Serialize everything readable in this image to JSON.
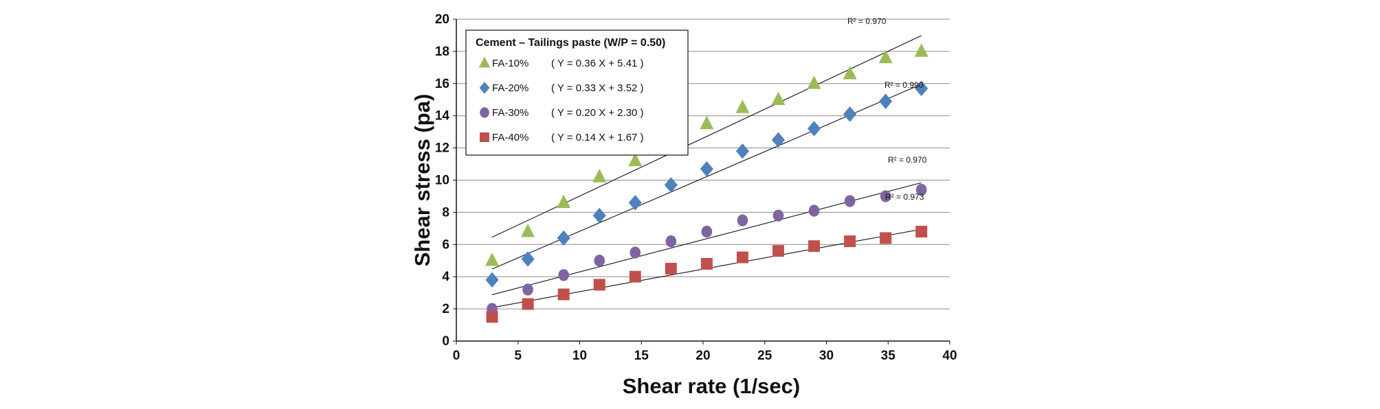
{
  "chart_data": {
    "type": "scatter",
    "xlabel": "Shear rate (1/sec)",
    "ylabel": "Shear stress (pa)",
    "xlim": [
      0,
      40
    ],
    "ylim": [
      0,
      20
    ],
    "xticks": [
      "0",
      "5",
      "10",
      "15",
      "20",
      "25",
      "30",
      "35",
      "40"
    ],
    "yticks": [
      "0",
      "2",
      "4",
      "6",
      "8",
      "10",
      "12",
      "14",
      "16",
      "18",
      "20"
    ],
    "grid": "horizontal",
    "legend": {
      "title": "Cement – Tailings paste (W/P = 0.50)",
      "placement": "top-left"
    },
    "series": [
      {
        "name": "FA-10%",
        "equation": "( Y = 0.36 X  + 5.41 )",
        "r2": "R² = 0.970",
        "marker": "triangle",
        "color": "#9bbb59",
        "x": [
          2.9,
          5.8,
          8.7,
          11.6,
          14.5,
          17.4,
          20.3,
          23.2,
          26.1,
          29.0,
          31.9,
          34.8,
          37.7
        ],
        "y": [
          5.0,
          6.8,
          8.6,
          10.2,
          11.2,
          12.4,
          13.5,
          14.5,
          15.0,
          16.0,
          16.6,
          17.6,
          18.0
        ],
        "fit": {
          "slope": 0.36,
          "intercept": 5.41
        }
      },
      {
        "name": "FA-20%",
        "equation": "( Y = 0.33 X  + 3.52 )",
        "r2": "R² = 0.990",
        "marker": "diamond",
        "color": "#4f81bd",
        "x": [
          2.9,
          5.8,
          8.7,
          11.6,
          14.5,
          17.4,
          20.3,
          23.2,
          26.1,
          29.0,
          31.9,
          34.8,
          37.7
        ],
        "y": [
          3.8,
          5.1,
          6.4,
          7.8,
          8.6,
          9.7,
          10.7,
          11.8,
          12.5,
          13.2,
          14.1,
          14.9,
          15.7
        ],
        "fit": {
          "slope": 0.33,
          "intercept": 3.52
        }
      },
      {
        "name": "FA-30%",
        "equation": "( Y = 0.20 X  + 2.30 )",
        "r2": "R² = 0.970",
        "marker": "circle",
        "color": "#8064a2",
        "x": [
          2.9,
          5.8,
          8.7,
          11.6,
          14.5,
          17.4,
          20.3,
          23.2,
          26.1,
          29.0,
          31.9,
          34.8,
          37.7
        ],
        "y": [
          2.0,
          3.2,
          4.1,
          5.0,
          5.5,
          6.2,
          6.8,
          7.5,
          7.8,
          8.1,
          8.7,
          9.0,
          9.4
        ],
        "fit": {
          "slope": 0.2,
          "intercept": 2.3
        }
      },
      {
        "name": "FA-40%",
        "equation": "( Y = 0.14 X  + 1.67 )",
        "r2": "R² = 0.973",
        "marker": "square",
        "color": "#c0504d",
        "x": [
          2.9,
          5.8,
          8.7,
          11.6,
          14.5,
          17.4,
          20.3,
          23.2,
          26.1,
          29.0,
          31.9,
          34.8,
          37.7
        ],
        "y": [
          1.5,
          2.3,
          2.9,
          3.5,
          4.0,
          4.5,
          4.8,
          5.2,
          5.6,
          5.9,
          6.2,
          6.4,
          6.8
        ],
        "fit": {
          "slope": 0.14,
          "intercept": 1.67
        }
      }
    ]
  }
}
